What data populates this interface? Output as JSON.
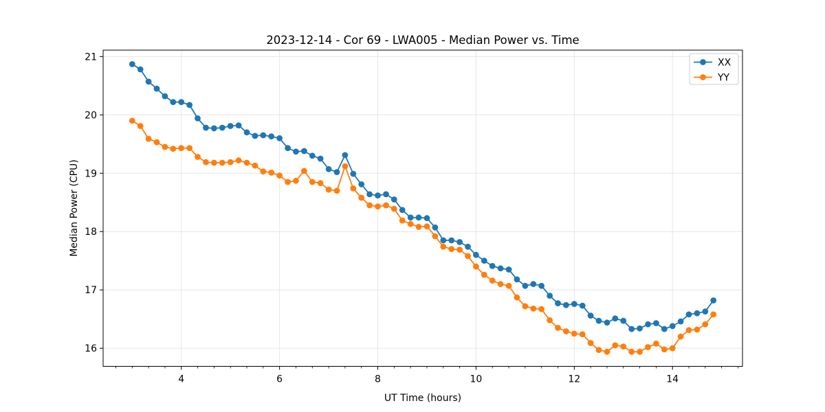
{
  "figure": {
    "kind": "matplotlib-line-plot"
  },
  "chart_data": {
    "type": "line",
    "title": "2023-12-14 - Cor 69 - LWA005 - Median Power vs. Time",
    "xlabel": "UT Time (hours)",
    "ylabel": "Median Power (CPU)",
    "xlim": [
      2.408,
      15.425
    ],
    "ylim": [
      15.69,
      21.11
    ],
    "xticks": [
      4,
      6,
      8,
      10,
      12,
      14
    ],
    "yticks": [
      16,
      17,
      18,
      19,
      20,
      21
    ],
    "x_minor_step": 0.3333,
    "grid": true,
    "legend": {
      "position": "upper right",
      "labels": [
        "XX",
        "YY"
      ]
    },
    "style": {
      "grid_color": "#e6e6e6",
      "spine_color": "#000000",
      "background": "#ffffff",
      "marker": "circle",
      "legend_border": "#cccccc"
    },
    "x": [
      3.0,
      3.167,
      3.333,
      3.5,
      3.667,
      3.833,
      4.0,
      4.167,
      4.333,
      4.5,
      4.667,
      4.833,
      5.0,
      5.167,
      5.333,
      5.5,
      5.667,
      5.833,
      6.0,
      6.167,
      6.333,
      6.5,
      6.667,
      6.833,
      7.0,
      7.167,
      7.333,
      7.5,
      7.667,
      7.833,
      8.0,
      8.167,
      8.333,
      8.5,
      8.667,
      8.833,
      9.0,
      9.167,
      9.333,
      9.5,
      9.667,
      9.833,
      10.0,
      10.167,
      10.333,
      10.5,
      10.667,
      10.833,
      11.0,
      11.167,
      11.333,
      11.5,
      11.667,
      11.833,
      12.0,
      12.167,
      12.333,
      12.5,
      12.667,
      12.833,
      13.0,
      13.167,
      13.333,
      13.5,
      13.667,
      13.833,
      14.0,
      14.167,
      14.333,
      14.5,
      14.667,
      14.833
    ],
    "series": [
      {
        "name": "XX",
        "color": "#1f77b4",
        "values": [
          20.87,
          20.78,
          20.57,
          20.45,
          20.32,
          20.22,
          20.22,
          20.17,
          19.94,
          19.78,
          19.77,
          19.78,
          19.81,
          19.82,
          19.7,
          19.64,
          19.65,
          19.63,
          19.6,
          19.43,
          19.37,
          19.38,
          19.3,
          19.25,
          19.07,
          19.02,
          19.31,
          18.99,
          18.81,
          18.64,
          18.62,
          18.64,
          18.55,
          18.37,
          18.24,
          18.24,
          18.23,
          18.07,
          17.85,
          17.85,
          17.82,
          17.74,
          17.6,
          17.5,
          17.41,
          17.37,
          17.35,
          17.18,
          17.07,
          17.1,
          17.07,
          16.9,
          16.77,
          16.74,
          16.76,
          16.73,
          16.56,
          16.47,
          16.44,
          16.51,
          16.47,
          16.33,
          16.34,
          16.41,
          16.43,
          16.33,
          16.38,
          16.46,
          16.58,
          16.6,
          16.63,
          16.82
        ]
      },
      {
        "name": "YY",
        "color": "#ff7f0e",
        "values": [
          19.9,
          19.81,
          19.59,
          19.53,
          19.45,
          19.42,
          19.43,
          19.43,
          19.28,
          19.19,
          19.18,
          19.18,
          19.19,
          19.22,
          19.18,
          19.13,
          19.03,
          19.01,
          18.96,
          18.85,
          18.87,
          19.04,
          18.85,
          18.83,
          18.72,
          18.7,
          19.12,
          18.74,
          18.58,
          18.45,
          18.43,
          18.45,
          18.39,
          18.19,
          18.13,
          18.08,
          18.09,
          17.92,
          17.74,
          17.7,
          17.69,
          17.58,
          17.4,
          17.26,
          17.16,
          17.1,
          17.07,
          16.87,
          16.72,
          16.68,
          16.67,
          16.48,
          16.35,
          16.29,
          16.25,
          16.24,
          16.09,
          15.97,
          15.94,
          16.05,
          16.03,
          15.94,
          15.94,
          16.02,
          16.08,
          15.98,
          16.0,
          16.2,
          16.31,
          16.32,
          16.41,
          16.58
        ]
      }
    ]
  }
}
